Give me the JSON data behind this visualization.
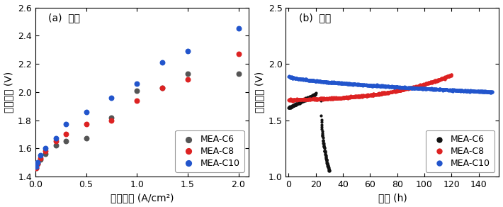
{
  "panel_a": {
    "label": "(a)  純水",
    "xlabel": "電流密度 (A/cm²)",
    "ylabel": "セル電圧 (V)",
    "xlim": [
      0,
      2.1
    ],
    "ylim": [
      1.4,
      2.6
    ],
    "xticks": [
      0,
      0.5,
      1.0,
      1.5,
      2.0
    ],
    "yticks": [
      1.4,
      1.6,
      1.8,
      2.0,
      2.2,
      2.4,
      2.6
    ],
    "c6_x": [
      0.01,
      0.02,
      0.05,
      0.1,
      0.2,
      0.3,
      0.5,
      0.75,
      1.0,
      1.25,
      1.5,
      2.0
    ],
    "c6_y": [
      1.46,
      1.49,
      1.52,
      1.56,
      1.62,
      1.65,
      1.67,
      1.82,
      2.01,
      2.03,
      2.13,
      2.13
    ],
    "c8_x": [
      0.01,
      0.02,
      0.05,
      0.1,
      0.2,
      0.3,
      0.5,
      0.75,
      1.0,
      1.25,
      1.5,
      2.0
    ],
    "c8_y": [
      1.46,
      1.49,
      1.53,
      1.58,
      1.65,
      1.7,
      1.77,
      1.8,
      1.94,
      2.03,
      2.09,
      2.27
    ],
    "c10_x": [
      0.01,
      0.02,
      0.05,
      0.1,
      0.2,
      0.3,
      0.5,
      0.75,
      1.0,
      1.25,
      1.5,
      2.0
    ],
    "c10_y": [
      1.47,
      1.5,
      1.55,
      1.6,
      1.67,
      1.77,
      1.86,
      1.96,
      2.06,
      2.21,
      2.29,
      2.45
    ],
    "color_c6": "#555555",
    "color_c8": "#dd2222",
    "color_c10": "#2255cc"
  },
  "panel_b": {
    "label": "(b)  純水",
    "xlabel": "時間 (h)",
    "ylabel": "セル電圧 (V)",
    "xlim": [
      -2,
      155
    ],
    "ylim": [
      1.0,
      2.5
    ],
    "xticks": [
      0,
      20,
      40,
      60,
      80,
      100,
      120,
      140
    ],
    "yticks": [
      1.0,
      1.5,
      2.0,
      2.5
    ],
    "color_c6": "#111111",
    "color_c8": "#dd2222",
    "color_c10": "#2255cc"
  },
  "legend_labels": [
    "MEA-C6",
    "MEA-C8",
    "MEA-C10"
  ],
  "marker_size_a": 22,
  "marker_size_b": 4,
  "font_size_label": 10,
  "font_size_tick": 9,
  "font_size_legend": 9,
  "font_size_annot": 10
}
